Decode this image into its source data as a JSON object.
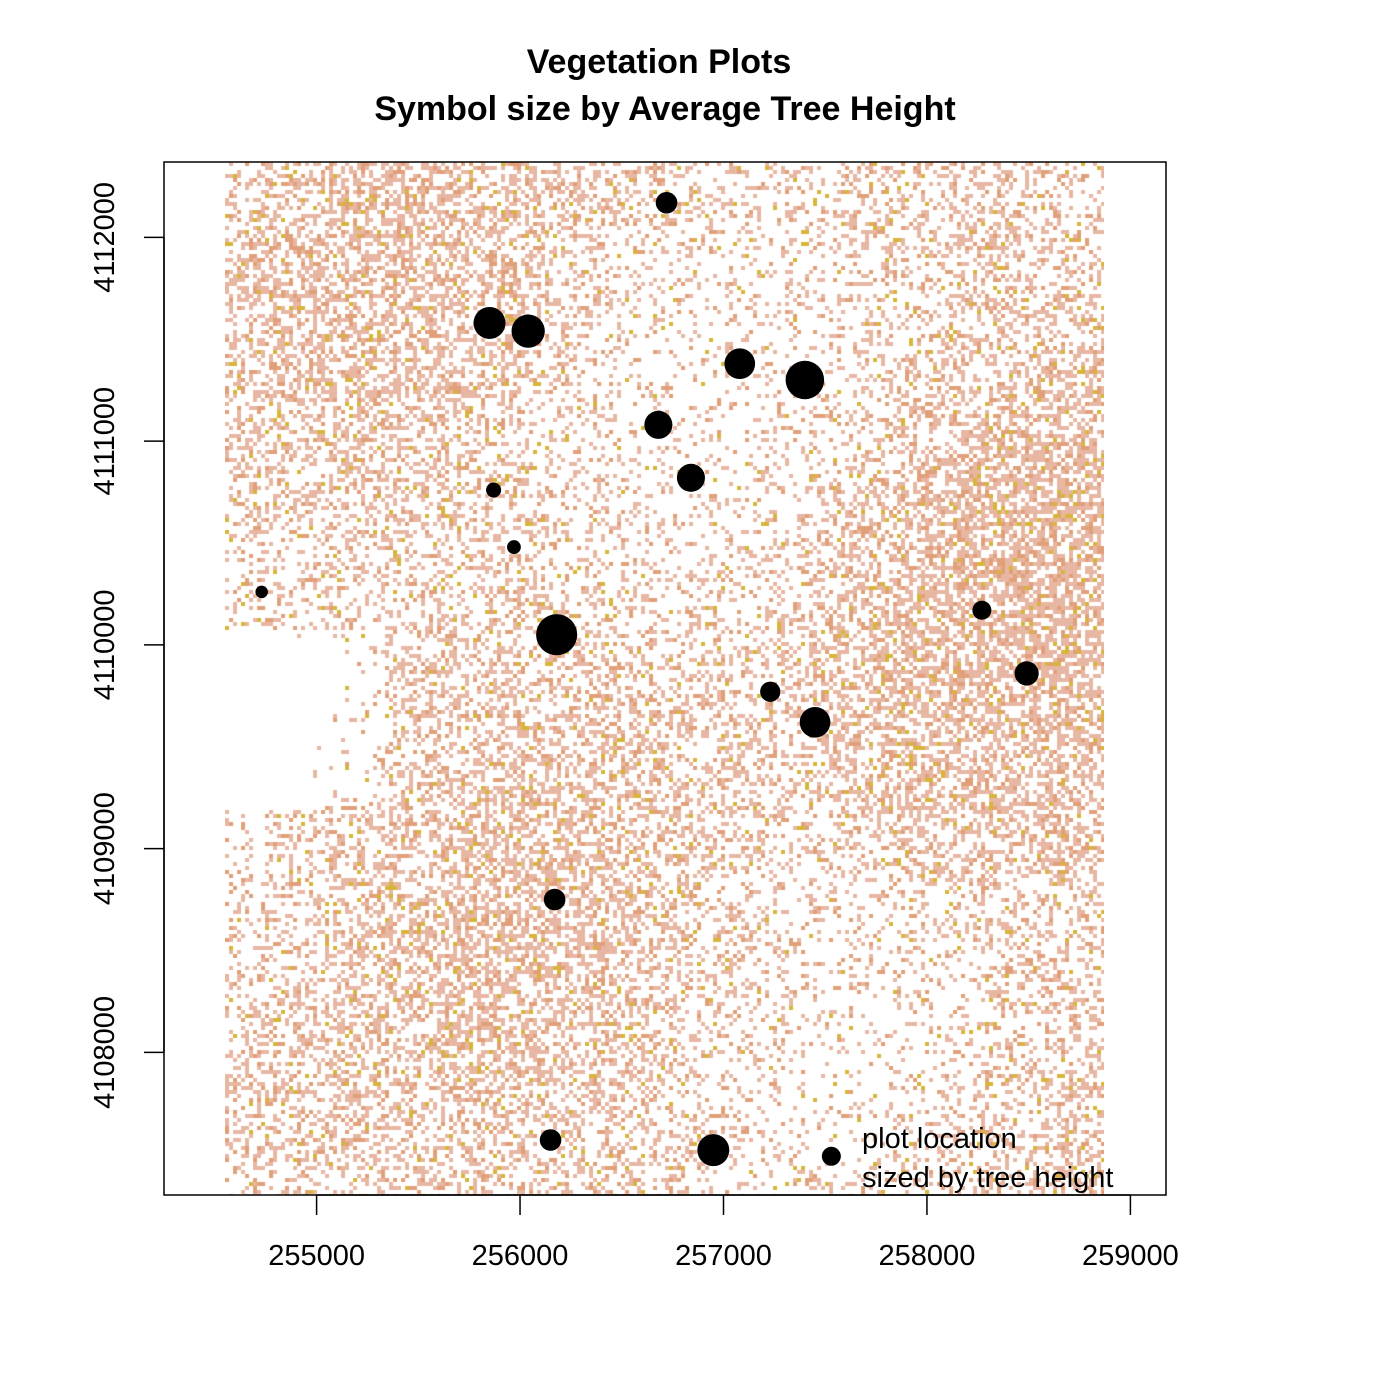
{
  "chart_data": {
    "type": "scatter",
    "title": "Vegetation Plots",
    "subtitle": "Symbol size by Average Tree Height",
    "xlabel": "",
    "ylabel": "",
    "xlim": [
      254250,
      259175
    ],
    "ylim": [
      4107300,
      4112370
    ],
    "raster_extent": {
      "x": [
        254550,
        258870
      ],
      "y": [
        4107300,
        4112370
      ]
    },
    "x_ticks": [
      255000,
      256000,
      257000,
      258000,
      259000
    ],
    "y_ticks": [
      4108000,
      4109000,
      4110000,
      4111000,
      4112000
    ],
    "grid": false,
    "legend": {
      "position": "bottom-right",
      "lines": [
        "plot location",
        "sized by tree height"
      ]
    },
    "colors": {
      "point": "#000000",
      "raster_low": "#e8b7a4",
      "raster_mid": "#e2a07a",
      "raster_high": "#d8b53a"
    },
    "points": [
      {
        "x": 256720,
        "y": 4112170,
        "height": 12
      },
      {
        "x": 255850,
        "y": 4111580,
        "height": 20
      },
      {
        "x": 256040,
        "y": 4111540,
        "height": 21
      },
      {
        "x": 257080,
        "y": 4111380,
        "height": 19
      },
      {
        "x": 257400,
        "y": 4111300,
        "height": 25
      },
      {
        "x": 256680,
        "y": 4111080,
        "height": 17
      },
      {
        "x": 256840,
        "y": 4110820,
        "height": 17
      },
      {
        "x": 255870,
        "y": 4110760,
        "height": 7
      },
      {
        "x": 255970,
        "y": 4110480,
        "height": 6
      },
      {
        "x": 254730,
        "y": 4110260,
        "height": 5
      },
      {
        "x": 256180,
        "y": 4110050,
        "height": 27
      },
      {
        "x": 258270,
        "y": 4110170,
        "height": 10
      },
      {
        "x": 258490,
        "y": 4109860,
        "height": 14
      },
      {
        "x": 257230,
        "y": 4109770,
        "height": 11
      },
      {
        "x": 257450,
        "y": 4109620,
        "height": 19
      },
      {
        "x": 256170,
        "y": 4108750,
        "height": 12
      },
      {
        "x": 256150,
        "y": 4107570,
        "height": 12
      },
      {
        "x": 256950,
        "y": 4107520,
        "height": 20
      },
      {
        "x": 257530,
        "y": 4107490,
        "height": 10
      }
    ]
  }
}
